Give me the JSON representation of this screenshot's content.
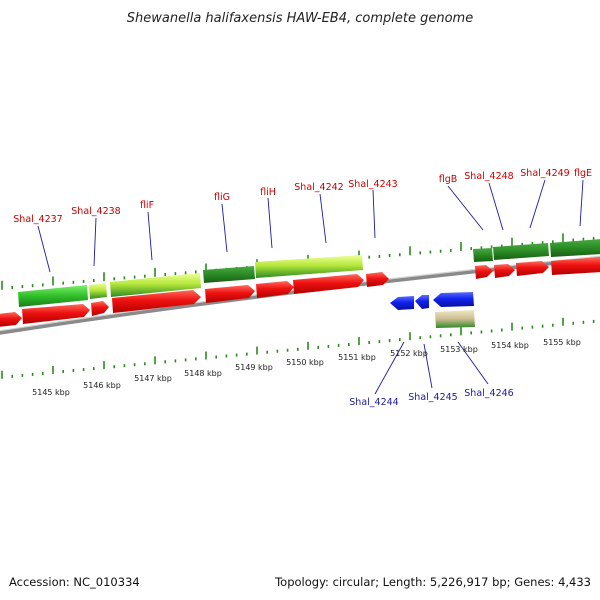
{
  "title": "Shewanella halifaxensis HAW-EB4, complete genome",
  "footer": {
    "accession": "Accession: NC_010334",
    "summary": "Topology: circular; Length: 5,226,917 bp; Genes: 4,433"
  },
  "scale_labels": [
    "5145 kbp",
    "5146 kbp",
    "5147 kbp",
    "5148 kbp",
    "5149 kbp",
    "5150 kbp",
    "5151 kbp",
    "5152 kbp",
    "5153 kbp",
    "5154 kbp",
    "5155 kbp"
  ],
  "gene_labels_forward": [
    "Shal_4237",
    "Shal_4238",
    "fliF",
    "fliG",
    "fliH",
    "Shal_4242",
    "Shal_4243",
    "flgB",
    "Shal_4248",
    "Shal_4249",
    "flgE"
  ],
  "gene_labels_reverse": [
    "Shal_4244",
    "Shal_4245",
    "Shal_4246"
  ],
  "colors": {
    "forward_cds": "#ee1111",
    "reverse_cds": "#1122ee",
    "tick": "#2a8a1e",
    "backbone": "#8a8a8a",
    "label_forward": "#cc0000",
    "label_reverse": "#1a1aa8"
  }
}
